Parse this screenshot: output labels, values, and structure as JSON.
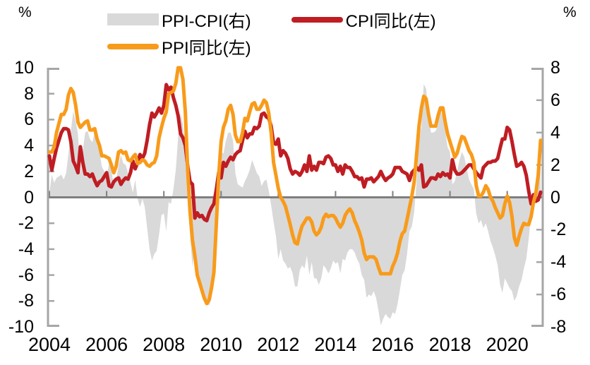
{
  "chart_data": {
    "type": "line",
    "x_unit": "monthly",
    "x_start": "2004-01",
    "x_end": "2021-03",
    "x_ticks": [
      "2004",
      "2006",
      "2008",
      "2010",
      "2012",
      "2014",
      "2016",
      "2018",
      "2020"
    ],
    "left_axis": {
      "label": "%",
      "min": -10,
      "max": 10,
      "tick_step": 2,
      "ticks": [
        "10",
        "8",
        "6",
        "4",
        "2",
        "0",
        "-2",
        "-4",
        "-6",
        "-8",
        "-10"
      ]
    },
    "right_axis": {
      "label": "%",
      "min": -8,
      "max": 8,
      "tick_step": 2,
      "ticks": [
        "8",
        "6",
        "4",
        "2",
        "0",
        "-2",
        "-4",
        "-6",
        "-8"
      ]
    },
    "axis_color": "#a6a6a6",
    "zero_line_color": "#7f7f7f",
    "series": [
      {
        "name": "PPI-CPI(右)",
        "type": "area",
        "axis": "right",
        "color": "#d9d9d9",
        "derivation": "ppi_minus_cpi"
      },
      {
        "name": "CPI同比(左)",
        "type": "line",
        "axis": "left",
        "color": "#bf1d23",
        "values": [
          3.2,
          2.1,
          3.0,
          3.8,
          4.4,
          5.0,
          5.3,
          5.3,
          5.2,
          4.3,
          2.8,
          2.4,
          1.9,
          3.9,
          2.7,
          1.8,
          1.8,
          1.6,
          1.8,
          1.3,
          0.9,
          1.2,
          1.3,
          1.6,
          1.9,
          0.9,
          0.8,
          1.2,
          1.4,
          1.5,
          1.0,
          1.3,
          1.5,
          1.4,
          1.9,
          2.8,
          2.2,
          2.7,
          3.3,
          3.0,
          3.4,
          4.4,
          5.6,
          6.5,
          6.2,
          6.5,
          6.9,
          6.5,
          7.1,
          8.7,
          8.3,
          8.5,
          7.7,
          7.1,
          6.3,
          4.9,
          4.6,
          4.0,
          2.4,
          1.2,
          1.0,
          -1.6,
          -1.2,
          -1.5,
          -1.4,
          -1.7,
          -1.8,
          -1.2,
          -0.8,
          -0.5,
          0.6,
          1.9,
          1.5,
          2.7,
          2.4,
          2.8,
          3.1,
          2.9,
          3.3,
          3.5,
          3.6,
          4.4,
          5.1,
          4.6,
          4.9,
          4.9,
          5.4,
          5.3,
          5.5,
          6.4,
          6.5,
          6.2,
          6.1,
          5.5,
          4.2,
          4.1,
          4.5,
          3.2,
          3.6,
          3.4,
          3.0,
          2.2,
          1.8,
          2.0,
          1.9,
          1.7,
          2.0,
          2.5,
          2.0,
          3.2,
          2.1,
          2.4,
          2.1,
          2.7,
          2.7,
          2.6,
          3.1,
          3.2,
          3.0,
          2.5,
          2.5,
          2.0,
          2.4,
          1.8,
          2.5,
          2.3,
          2.3,
          2.0,
          1.6,
          1.6,
          1.4,
          1.5,
          0.8,
          1.4,
          1.4,
          1.5,
          1.2,
          1.4,
          1.6,
          2.0,
          1.6,
          1.3,
          1.5,
          1.6,
          1.8,
          2.3,
          2.3,
          2.3,
          2.0,
          1.9,
          1.8,
          1.3,
          1.9,
          2.1,
          2.3,
          2.1,
          2.5,
          0.8,
          0.9,
          1.2,
          1.5,
          1.5,
          1.4,
          1.8,
          1.6,
          1.9,
          1.7,
          1.8,
          1.5,
          2.9,
          2.1,
          1.8,
          1.8,
          1.9,
          2.1,
          2.3,
          2.5,
          2.5,
          2.2,
          1.9,
          1.7,
          1.5,
          2.3,
          2.5,
          2.7,
          2.7,
          2.8,
          2.8,
          3.0,
          3.8,
          4.5,
          4.5,
          5.4,
          5.2,
          4.3,
          3.3,
          2.4,
          2.5,
          2.7,
          2.4,
          1.7,
          0.5,
          -0.5,
          0.2,
          -0.3,
          -0.2,
          0.4
        ]
      },
      {
        "name": "PPI同比(左)",
        "type": "line",
        "axis": "left",
        "color": "#f89b1b",
        "values": [
          3.5,
          3.5,
          3.9,
          5.0,
          5.7,
          6.4,
          6.4,
          6.8,
          7.9,
          8.4,
          8.1,
          7.1,
          5.8,
          5.4,
          5.6,
          5.8,
          5.9,
          5.2,
          5.2,
          5.3,
          4.5,
          4.0,
          3.2,
          3.2,
          3.1,
          3.0,
          2.5,
          1.9,
          2.4,
          3.5,
          3.6,
          3.4,
          3.5,
          2.9,
          2.8,
          3.1,
          3.3,
          2.6,
          2.7,
          2.9,
          2.8,
          2.5,
          2.4,
          2.6,
          2.7,
          3.2,
          4.6,
          5.4,
          6.1,
          6.6,
          8.0,
          8.1,
          8.2,
          8.8,
          10.0,
          10.1,
          9.1,
          6.6,
          2.0,
          -1.1,
          -3.3,
          -4.5,
          -6.0,
          -6.6,
          -7.2,
          -7.8,
          -8.2,
          -7.9,
          -7.0,
          -5.8,
          -2.1,
          1.7,
          4.3,
          5.4,
          5.9,
          6.8,
          7.1,
          6.4,
          4.8,
          4.3,
          4.3,
          5.0,
          6.1,
          5.9,
          6.6,
          7.2,
          7.3,
          6.8,
          6.8,
          7.1,
          7.5,
          7.3,
          6.5,
          5.0,
          2.7,
          1.7,
          0.7,
          0.0,
          -0.3,
          -0.7,
          -1.4,
          -2.1,
          -2.9,
          -3.5,
          -3.6,
          -2.8,
          -2.2,
          -1.9,
          -1.6,
          -1.6,
          -1.9,
          -2.6,
          -2.9,
          -2.7,
          -2.3,
          -1.6,
          -1.3,
          -1.5,
          -1.4,
          -1.4,
          -1.6,
          -2.0,
          -2.3,
          -2.0,
          -1.4,
          -1.1,
          -0.9,
          -1.2,
          -1.8,
          -2.2,
          -2.7,
          -3.3,
          -4.3,
          -4.8,
          -4.6,
          -4.6,
          -4.6,
          -4.8,
          -5.4,
          -5.9,
          -5.9,
          -5.9,
          -5.9,
          -5.9,
          -5.3,
          -4.9,
          -4.3,
          -3.4,
          -2.8,
          -2.6,
          -1.7,
          -0.8,
          0.1,
          1.2,
          3.3,
          5.5,
          6.9,
          7.8,
          7.6,
          6.4,
          5.5,
          5.5,
          5.5,
          6.3,
          6.9,
          6.9,
          5.8,
          4.9,
          4.3,
          3.7,
          3.1,
          3.4,
          4.1,
          4.7,
          4.6,
          4.1,
          3.6,
          3.3,
          2.7,
          0.9,
          0.1,
          0.1,
          0.4,
          0.9,
          0.6,
          0.0,
          -0.3,
          -0.8,
          -1.2,
          -1.6,
          -1.4,
          -0.5,
          0.1,
          -0.4,
          -1.5,
          -3.1,
          -3.7,
          -3.0,
          -2.4,
          -2.0,
          -2.1,
          -2.1,
          -1.5,
          -0.4,
          0.3,
          1.7,
          4.4
        ]
      }
    ]
  }
}
